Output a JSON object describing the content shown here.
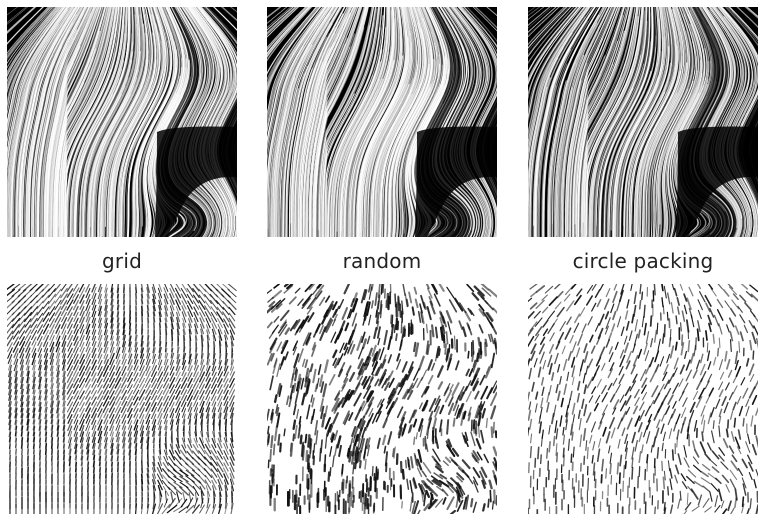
{
  "captions": {
    "grid": "grid",
    "random": "random",
    "circle_packing": "circle packing"
  },
  "colors": {
    "background": "#ffffff",
    "streamline_bg": "#000000",
    "streamline_fg": "#ffffff",
    "hatch_bg": "#ffffff",
    "hatch_fg": "#111111",
    "caption_text": "#222222"
  }
}
